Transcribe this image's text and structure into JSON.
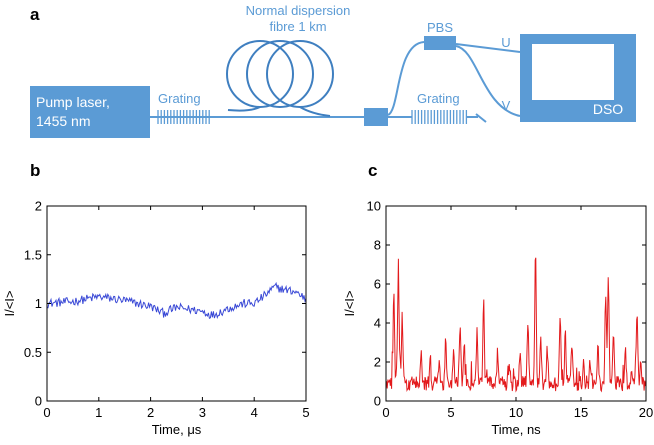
{
  "panels": {
    "a": "a",
    "b": "b",
    "c": "c"
  },
  "colors": {
    "accent": "#5b9bd5",
    "box": "#5b9bd5",
    "coil": "#3f7fc0",
    "trace_b": "#3a49d6",
    "trace_c": "#e31a1c"
  },
  "diagram": {
    "pump_label_line1": "Pump laser,",
    "pump_label_line2": "1455 nm",
    "grating_left": "Grating",
    "fibre_line1": "Normal dispersion",
    "fibre_line2": "fibre 1 km",
    "pbs": "PBS",
    "grating_right": "Grating",
    "out_u": "U",
    "out_v": "V",
    "dso": "DSO"
  },
  "chart_data": [
    {
      "id": "b",
      "type": "line",
      "title": "",
      "xlabel": "Time, μs",
      "ylabel": "I/<I>",
      "xlim": [
        0,
        5
      ],
      "ylim": [
        0,
        2
      ],
      "xticks": [
        0,
        1,
        2,
        3,
        4,
        5
      ],
      "xtick_labels": [
        "0",
        "1",
        "2",
        "3",
        "4",
        "5"
      ],
      "yticks": [
        0,
        0.5,
        1,
        1.5,
        2
      ],
      "ytick_labels": [
        "0",
        "0.5",
        "1",
        "1.5",
        "2"
      ],
      "series": [
        {
          "name": "intensity",
          "anchors": [
            [
              0,
              1.0
            ],
            [
              0.5,
              1.02
            ],
            [
              1,
              1.07
            ],
            [
              1.5,
              1.03
            ],
            [
              2,
              0.97
            ],
            [
              2.25,
              0.9
            ],
            [
              2.5,
              0.96
            ],
            [
              3,
              0.92
            ],
            [
              3.2,
              0.88
            ],
            [
              3.5,
              0.95
            ],
            [
              3.8,
              1.0
            ],
            [
              4,
              1.0
            ],
            [
              4.2,
              1.08
            ],
            [
              4.4,
              1.17
            ],
            [
              4.6,
              1.14
            ],
            [
              4.8,
              1.12
            ],
            [
              5,
              1.05
            ]
          ],
          "noise": 0.045,
          "points": 260
        }
      ]
    },
    {
      "id": "c",
      "type": "line",
      "title": "",
      "xlabel": "Time, ns",
      "ylabel": "I/<I>",
      "xlim": [
        0,
        20
      ],
      "ylim": [
        0,
        10
      ],
      "xticks": [
        0,
        5,
        10,
        15,
        20
      ],
      "xtick_labels": [
        "0",
        "5",
        "10",
        "15",
        "20"
      ],
      "yticks": [
        0,
        2,
        4,
        6,
        8,
        10
      ],
      "ytick_labels": [
        "0",
        "2",
        "4",
        "6",
        "8",
        "10"
      ],
      "series": [
        {
          "name": "intensity",
          "baseline": 0.5,
          "peaks": [
            [
              0.6,
              5.2
            ],
            [
              0.95,
              6.6
            ],
            [
              1.25,
              3.5
            ],
            [
              2.7,
              2.4
            ],
            [
              3.4,
              1.8
            ],
            [
              4.1,
              1.9
            ],
            [
              4.6,
              2.7
            ],
            [
              5.2,
              2.0
            ],
            [
              5.7,
              3.2
            ],
            [
              6.0,
              2.4
            ],
            [
              7.0,
              3.2
            ],
            [
              7.5,
              4.2
            ],
            [
              8.6,
              1.8
            ],
            [
              9.5,
              1.5
            ],
            [
              10.3,
              2.1
            ],
            [
              10.9,
              3.4
            ],
            [
              11.5,
              7.8
            ],
            [
              11.9,
              3.0
            ],
            [
              12.4,
              2.2
            ],
            [
              13.4,
              4.2
            ],
            [
              13.8,
              3.1
            ],
            [
              14.3,
              2.7
            ],
            [
              15.2,
              1.8
            ],
            [
              15.7,
              1.7
            ],
            [
              16.3,
              2.5
            ],
            [
              16.9,
              5.0
            ],
            [
              17.1,
              5.7
            ],
            [
              17.5,
              3.4
            ],
            [
              18.4,
              2.2
            ],
            [
              18.9,
              1.4
            ],
            [
              19.3,
              4.2
            ],
            [
              19.6,
              1.6
            ]
          ],
          "peak_width": 0.12,
          "noise": 0.35,
          "points": 420
        }
      ]
    }
  ]
}
